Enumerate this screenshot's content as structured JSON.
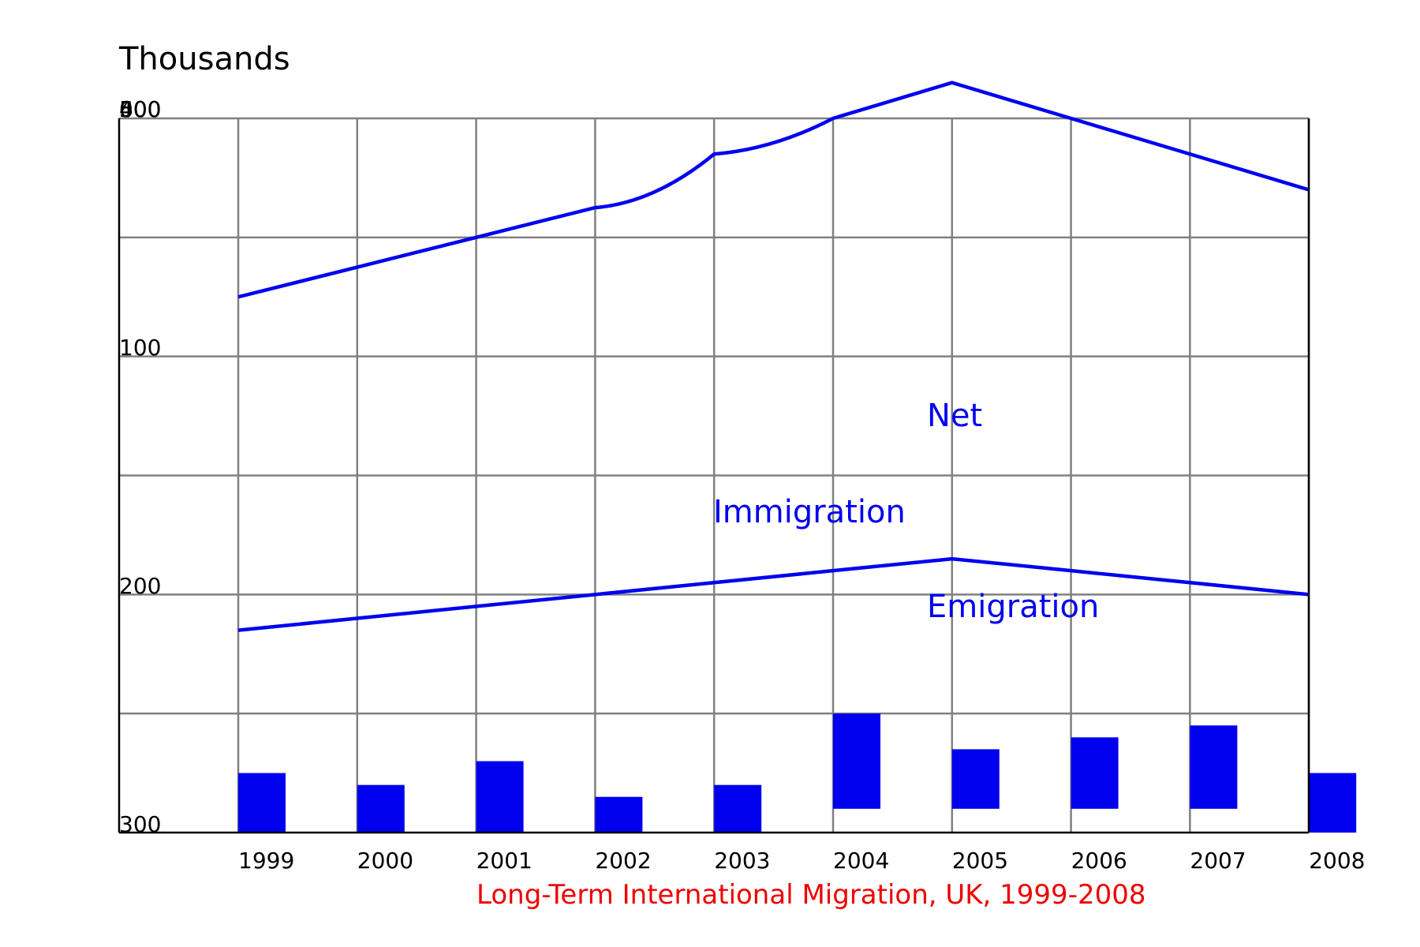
{
  "chart_data": {
    "type": "line",
    "ylabel": "Thousands",
    "caption": "Long-Term International Migration, UK, 1999-2008",
    "categories": [
      "1999",
      "2000",
      "2001",
      "2002",
      "2003",
      "2004",
      "2005",
      "2006",
      "2007",
      "2008"
    ],
    "y_tick_labels": [
      "0",
      "100",
      "200",
      "300",
      "400",
      "500",
      "600"
    ],
    "ylim": [
      0,
      600
    ],
    "grid": true,
    "series": [
      {
        "name": "Net",
        "type": "line",
        "values": [
          450,
          475,
          500,
          525,
          570,
          600,
          630,
          600,
          570,
          540
        ]
      },
      {
        "name": "Immigration",
        "type": "line",
        "values": [
          170,
          180,
          190,
          200,
          210,
          220,
          230,
          220,
          210,
          200
        ]
      },
      {
        "name": "Emigration",
        "type": "bar",
        "values": [
          50,
          40,
          60,
          30,
          40,
          80,
          50,
          60,
          70,
          50
        ],
        "base": [
          0,
          0,
          0,
          0,
          0,
          20,
          20,
          20,
          20,
          0
        ]
      }
    ],
    "colors": {
      "series": "#0000ee",
      "caption": "#ee0000",
      "grid": "#808080",
      "axis": "#000000"
    }
  }
}
